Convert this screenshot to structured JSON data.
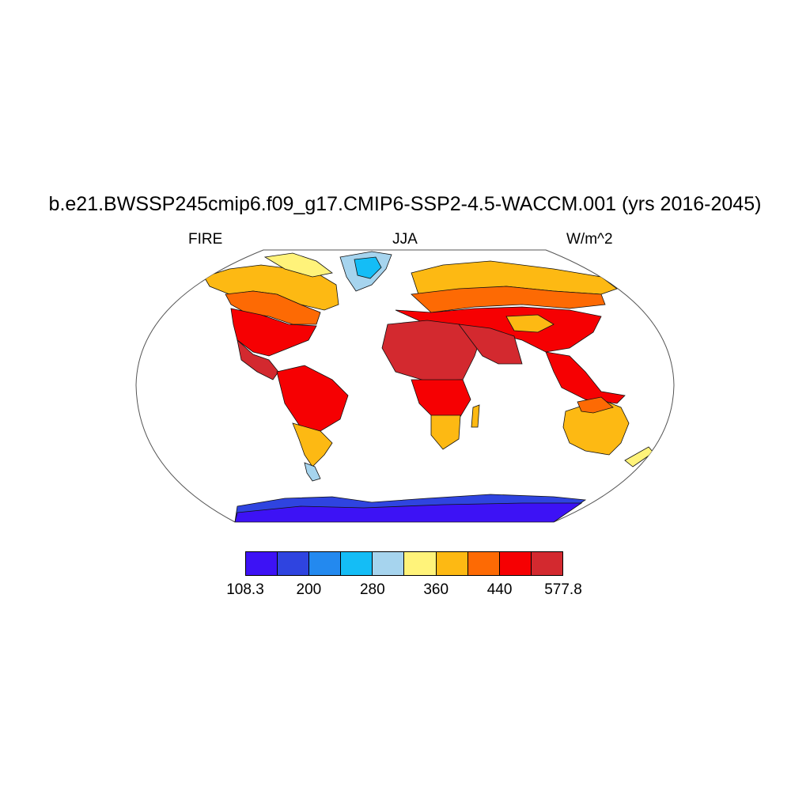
{
  "title": "b.e21.BWSSP245cmip6.f09_g17.CMIP6-SSP2-4.5-WACCM.001 (yrs 2016-2045)",
  "left_label": "FIRE",
  "center_label": "JJA",
  "right_label": "W/m^2",
  "colorbar": {
    "colors": [
      "#3d12f5",
      "#2f44e0",
      "#2389ef",
      "#14bdf6",
      "#a6d4ee",
      "#fff37a",
      "#fdb913",
      "#fd6a04",
      "#f60002",
      "#d3292f"
    ],
    "labels": [
      "108.3",
      "200",
      "280",
      "360",
      "440",
      "577.8"
    ]
  },
  "map": {
    "projection": "robinson",
    "region_colors": {
      "antarctica": "#3d12f5",
      "antarctica_coast": "#2f44e0",
      "greenland_interior": "#14bdf6",
      "greenland_coast": "#a6d4ee",
      "arctic_coast": "#fdb913",
      "boreal": "#fd6a04",
      "temperate": "#f60002",
      "hot": "#d3292f",
      "tundra": "#fff37a"
    }
  }
}
